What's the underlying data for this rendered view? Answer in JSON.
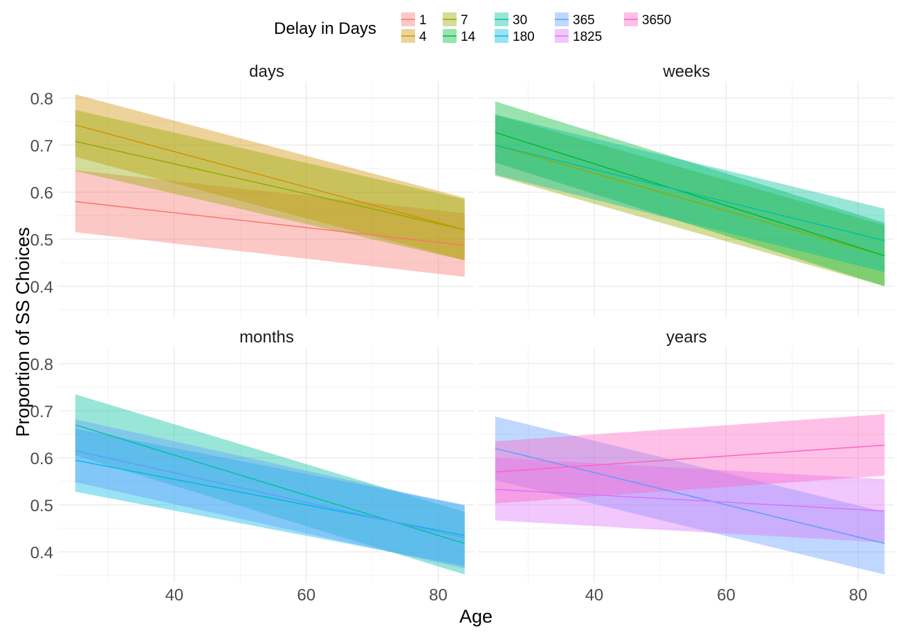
{
  "chart_data": {
    "type": "line",
    "xlabel": "Age",
    "ylabel": "Proportion of SS Choices",
    "xlim": [
      22.5,
      85.5
    ],
    "ylim": [
      0.335,
      0.835
    ],
    "x_ticks": [
      40,
      60,
      80
    ],
    "x_minor": [
      30,
      50,
      70
    ],
    "y_ticks": [
      0.4,
      0.5,
      0.6,
      0.7,
      0.8
    ],
    "y_tick_labels": [
      "0.4",
      "0.5",
      "0.6",
      "0.7",
      "0.8"
    ],
    "x_tick_labels": [
      "40",
      "60",
      "80"
    ],
    "grid": true,
    "legend": {
      "title": "Delay in Days",
      "position": "top",
      "entries": [
        {
          "name": "1",
          "color": "#F8766D"
        },
        {
          "name": "4",
          "color": "#D39200"
        },
        {
          "name": "7",
          "color": "#93AA00"
        },
        {
          "name": "14",
          "color": "#00BA38"
        },
        {
          "name": "30",
          "color": "#00C19F"
        },
        {
          "name": "180",
          "color": "#00B9E3"
        },
        {
          "name": "365",
          "color": "#619CFF"
        },
        {
          "name": "1825",
          "color": "#DB72FB"
        },
        {
          "name": "3650",
          "color": "#FF61C3"
        }
      ]
    },
    "panels": [
      {
        "title": "days",
        "series": [
          {
            "name": "1",
            "color": "#F8766D",
            "x": [
              25,
              84
            ],
            "y": [
              0.58,
              0.487
            ],
            "lower": [
              0.515,
              0.42
            ],
            "upper": [
              0.647,
              0.555
            ]
          },
          {
            "name": "4",
            "color": "#D39200",
            "x": [
              25,
              84
            ],
            "y": [
              0.743,
              0.52
            ],
            "lower": [
              0.675,
              0.455
            ],
            "upper": [
              0.808,
              0.588
            ]
          },
          {
            "name": "7",
            "color": "#93AA00",
            "x": [
              25,
              84
            ],
            "y": [
              0.708,
              0.52
            ],
            "lower": [
              0.645,
              0.455
            ],
            "upper": [
              0.775,
              0.585
            ]
          }
        ]
      },
      {
        "title": "weeks",
        "series": [
          {
            "name": "7",
            "color": "#93AA00",
            "x": [
              25,
              84
            ],
            "y": [
              0.7,
              0.465
            ],
            "lower": [
              0.635,
              0.4
            ],
            "upper": [
              0.765,
              0.53
            ]
          },
          {
            "name": "14",
            "color": "#00BA38",
            "x": [
              25,
              84
            ],
            "y": [
              0.727,
              0.465
            ],
            "lower": [
              0.663,
              0.4
            ],
            "upper": [
              0.793,
              0.535
            ]
          },
          {
            "name": "30",
            "color": "#00C19F",
            "x": [
              25,
              84
            ],
            "y": [
              0.7,
              0.497
            ],
            "lower": [
              0.637,
              0.43
            ],
            "upper": [
              0.765,
              0.565
            ]
          }
        ]
      },
      {
        "title": "months",
        "series": [
          {
            "name": "30",
            "color": "#00C19F",
            "x": [
              25,
              84
            ],
            "y": [
              0.67,
              0.418
            ],
            "lower": [
              0.605,
              0.352
            ],
            "upper": [
              0.735,
              0.485
            ]
          },
          {
            "name": "180",
            "color": "#00B9E3",
            "x": [
              25,
              84
            ],
            "y": [
              0.595,
              0.435
            ],
            "lower": [
              0.528,
              0.37
            ],
            "upper": [
              0.662,
              0.5
            ]
          },
          {
            "name": "365",
            "color": "#619CFF",
            "x": [
              25,
              84
            ],
            "y": [
              0.615,
              0.43
            ],
            "lower": [
              0.548,
              0.365
            ],
            "upper": [
              0.682,
              0.498
            ]
          }
        ]
      },
      {
        "title": "years",
        "series": [
          {
            "name": "365",
            "color": "#619CFF",
            "x": [
              25,
              84
            ],
            "y": [
              0.62,
              0.418
            ],
            "lower": [
              0.553,
              0.352
            ],
            "upper": [
              0.688,
              0.485
            ]
          },
          {
            "name": "1825",
            "color": "#DB72FB",
            "x": [
              25,
              84
            ],
            "y": [
              0.533,
              0.487
            ],
            "lower": [
              0.467,
              0.42
            ],
            "upper": [
              0.6,
              0.555
            ]
          },
          {
            "name": "3650",
            "color": "#FF61C3",
            "x": [
              25,
              84
            ],
            "y": [
              0.57,
              0.627
            ],
            "lower": [
              0.503,
              0.562
            ],
            "upper": [
              0.635,
              0.693
            ]
          }
        ]
      }
    ]
  }
}
